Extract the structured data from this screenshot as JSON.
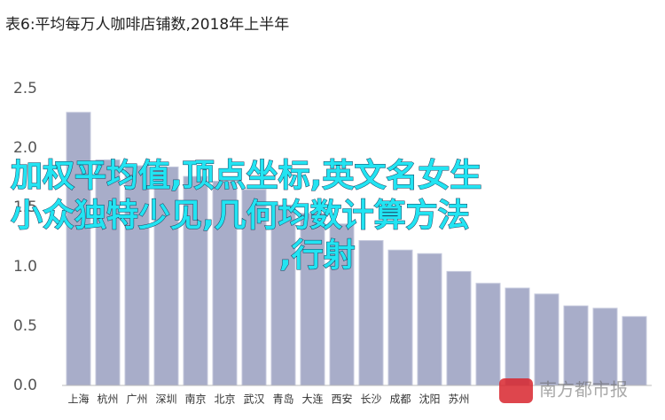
{
  "chart_data": {
    "type": "bar",
    "title": "表6:平均每万人咖啡店铺数,2018年上半年",
    "categories": [
      "上海",
      "杭州",
      "广州",
      "深圳",
      "南京",
      "北京",
      "武汉",
      "青岛",
      "大连",
      "西安",
      "长沙",
      "成都",
      "沈阳",
      "苏州",
      null,
      null,
      null,
      null,
      null,
      null
    ],
    "values": [
      2.3,
      1.9,
      1.85,
      1.84,
      1.76,
      1.72,
      1.65,
      1.52,
      1.45,
      1.36,
      1.22,
      1.14,
      1.11,
      0.96,
      0.86,
      0.82,
      0.77,
      0.67,
      0.65,
      0.58
    ],
    "color": "#a8adc9",
    "ylim": [
      0,
      2.5
    ],
    "yticks": [
      {
        "value": 0,
        "label": "0.0"
      },
      0.5,
      {
        "value": 1,
        "label": "1.0"
      },
      1.5,
      {
        "value": 2,
        "label": "2.0"
      },
      2.5
    ],
    "grid": false,
    "annotations": [
      "加权平均值,顶点坐标,英文名女生",
      "小众独特少见,几何均数计算方法",
      ",行射"
    ],
    "watermark": "南方都市报"
  }
}
